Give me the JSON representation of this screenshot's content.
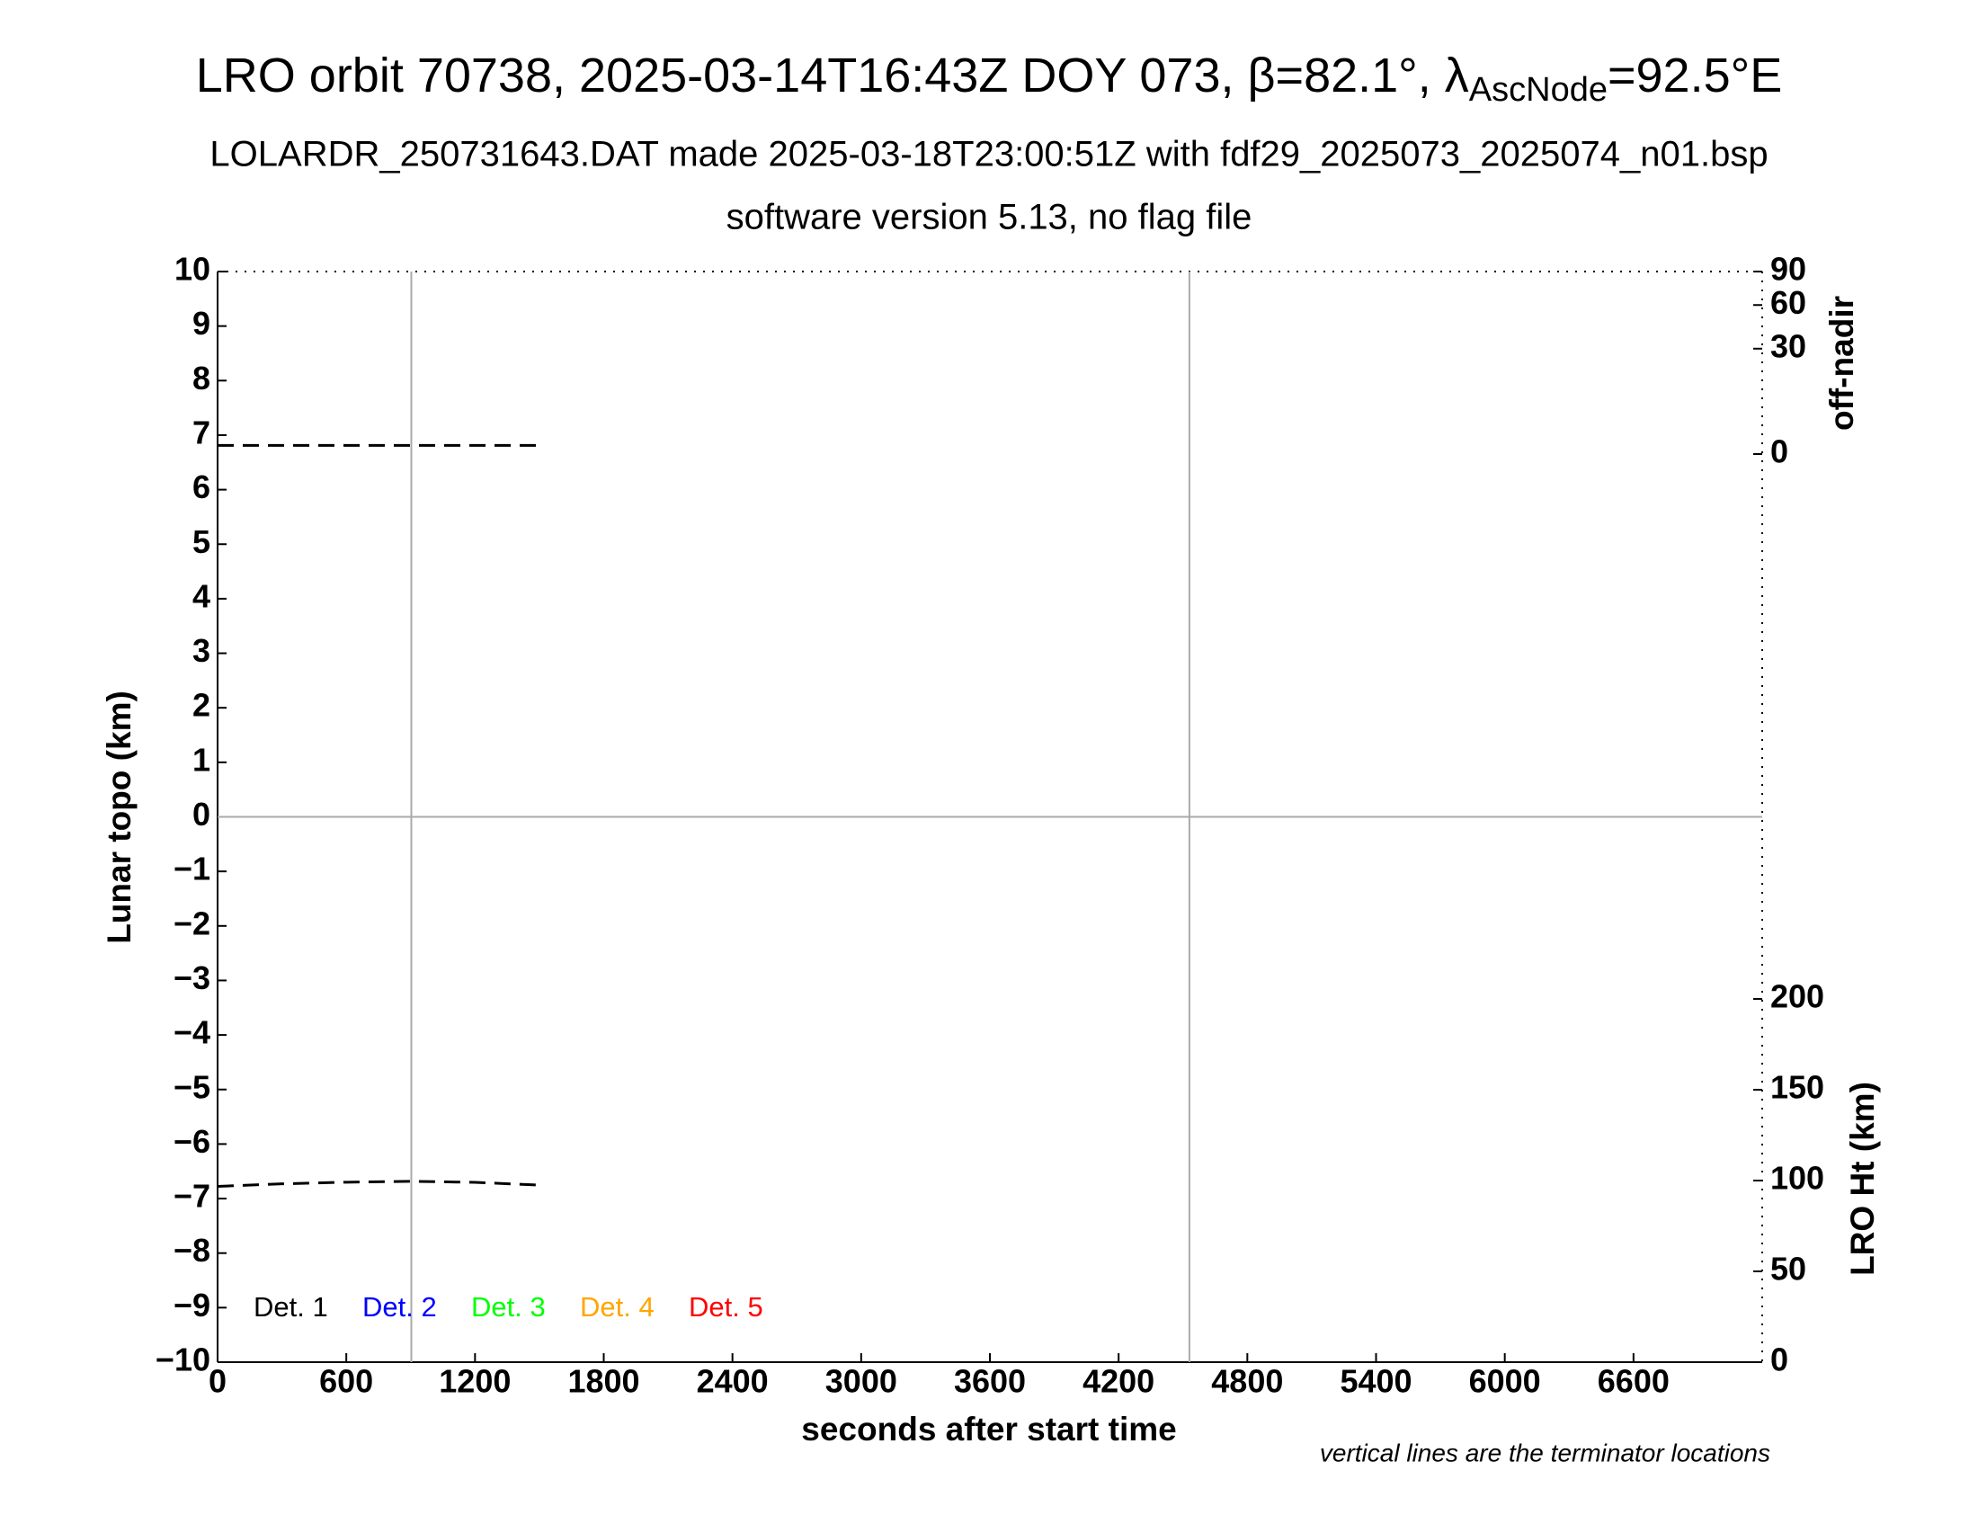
{
  "chart_data": {
    "type": "line",
    "title": "LRO orbit 70738, 2025-03-14T16:43Z DOY 073, β=82.1°, λ",
    "title_subscript": "AscNode",
    "title_end": "=92.5°E",
    "subtitle": "LOLARDR_250731643.DAT made 2025-03-18T23:00:51Z with fdf29_2025073_2025074_n01.bsp",
    "subtitle2": "software version 5.13, no flag file",
    "xlabel": "seconds after start time",
    "ylabel": "Lunar topo (km)",
    "y2label": "off-nadir",
    "y3label": "LRO Ht (km)",
    "note": "vertical lines are the terminator locations",
    "xlim": [
      0,
      7200
    ],
    "xticks": [
      0,
      600,
      1200,
      1800,
      2400,
      3000,
      3600,
      4200,
      4800,
      5400,
      6000,
      6600
    ],
    "ylim": [
      -10,
      10
    ],
    "yticks": [
      {
        "value": -10,
        "label": "−10"
      },
      {
        "value": -9,
        "label": "−9"
      },
      {
        "value": -8,
        "label": "−8"
      },
      {
        "value": -7,
        "label": "−7"
      },
      {
        "value": -6,
        "label": "−6"
      },
      {
        "value": -5,
        "label": "−5"
      },
      {
        "value": -4,
        "label": "−4"
      },
      {
        "value": -3,
        "label": "−3"
      },
      {
        "value": -2,
        "label": "−2"
      },
      {
        "value": -1,
        "label": "−1"
      },
      0,
      1,
      2,
      3,
      4,
      5,
      6,
      7,
      8,
      9,
      10
    ],
    "y2lim": [
      0,
      90
    ],
    "y2ticks": [
      0,
      30,
      60,
      90
    ],
    "y2scale": "sqrt",
    "y3lim": [
      0,
      200
    ],
    "y3ticks": [
      0,
      50,
      100,
      150,
      200
    ],
    "vlines": [
      903,
      4530
    ],
    "legend": [
      {
        "name": "Det. 1",
        "color": "#000000"
      },
      {
        "name": "Det. 2",
        "color": "#0000ff"
      },
      {
        "name": "Det. 3",
        "color": "#00ff00"
      },
      {
        "name": "Det. 4",
        "color": "#ffa500"
      },
      {
        "name": "Det. 5",
        "color": "#ff0000"
      }
    ],
    "series": [
      {
        "name": "off-nadir",
        "axis": "y2",
        "color": "#000000",
        "x": [
          0,
          300,
          600,
          900,
          1200,
          1500
        ],
        "values": [
          0.2,
          0.2,
          0.2,
          0.2,
          0.2,
          0.2
        ]
      },
      {
        "name": "LRO Ht",
        "axis": "y3",
        "color": "#000000",
        "x": [
          0,
          300,
          600,
          900,
          1200,
          1500
        ],
        "values": [
          96.8,
          98.2,
          99.1,
          99.6,
          99.0,
          97.5
        ]
      }
    ]
  }
}
